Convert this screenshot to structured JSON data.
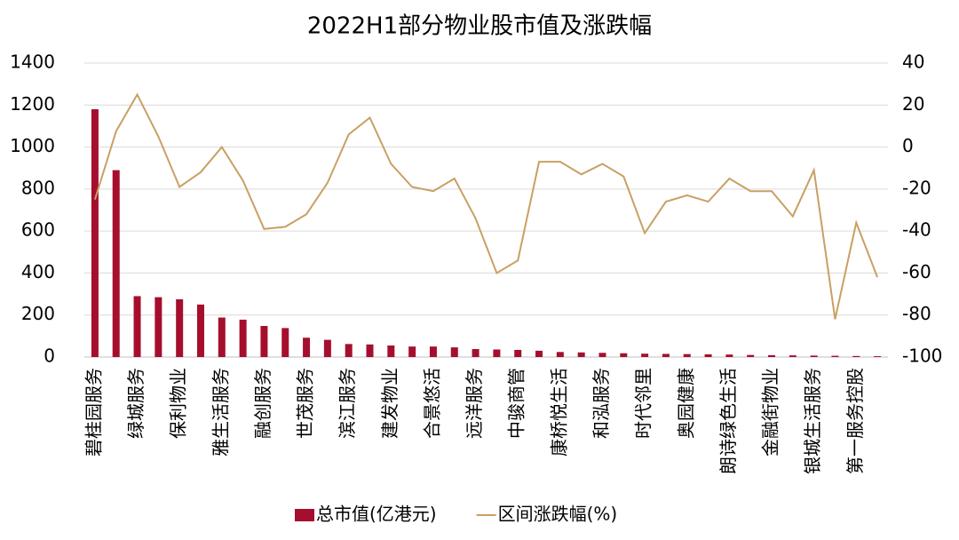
{
  "chart_data": {
    "type": "bar_line",
    "title": "2022H1部分物业股市值及涨跌幅",
    "categories": [
      "碧桂园服务",
      null,
      "绿城服务",
      null,
      "保利物业",
      null,
      "雅生活服务",
      null,
      "融创服务",
      null,
      "世茂服务",
      null,
      "滨江服务",
      null,
      "建发物业",
      null,
      "合景悠活",
      null,
      "远洋服务",
      null,
      "中骏商管",
      null,
      "康桥悦生活",
      null,
      "和泓服务",
      null,
      "时代邻里",
      null,
      "奥园健康",
      null,
      "朗诗绿色生活",
      null,
      "金融街物业",
      null,
      "银城生活服务",
      null,
      "第一服务控股",
      null
    ],
    "series": [
      {
        "name": "总市值(亿港元)",
        "type": "bar",
        "color": "#a50f2d",
        "values": [
          1180,
          890,
          290,
          285,
          275,
          250,
          188,
          178,
          148,
          138,
          92,
          82,
          62,
          60,
          55,
          50,
          50,
          46,
          38,
          36,
          34,
          30,
          24,
          22,
          20,
          18,
          16,
          15,
          14,
          13,
          12,
          10,
          9,
          8,
          7,
          6,
          5,
          4
        ]
      },
      {
        "name": "区间涨跌幅(%)",
        "type": "line",
        "axis": "y2",
        "color": "#c9a063",
        "values": [
          -25,
          7.5,
          25,
          5,
          -19,
          -12,
          0,
          -16,
          -39,
          -38,
          -32,
          -17,
          6,
          14,
          -8,
          -19,
          -21,
          -15,
          -34,
          -60,
          -54,
          -7,
          -7,
          -13,
          -8,
          -14,
          -41,
          -26,
          -23,
          -26,
          -15,
          -21,
          -21,
          -33,
          -11,
          -82,
          -36,
          -62
        ]
      }
    ],
    "ylim": [
      0,
      1400
    ],
    "yticks": [
      0,
      200,
      400,
      600,
      800,
      1000,
      1200,
      1400
    ],
    "y2lim": [
      -100,
      40
    ],
    "y2ticks": [
      -100,
      -80,
      -60,
      -40,
      -20,
      0,
      20,
      40
    ],
    "grid": true,
    "legend": "bottom"
  }
}
